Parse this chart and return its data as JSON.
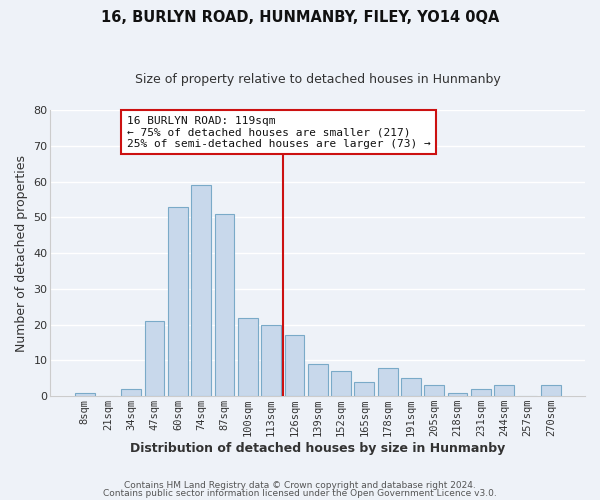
{
  "title": "16, BURLYN ROAD, HUNMANBY, FILEY, YO14 0QA",
  "subtitle": "Size of property relative to detached houses in Hunmanby",
  "xlabel": "Distribution of detached houses by size in Hunmanby",
  "ylabel": "Number of detached properties",
  "bar_labels": [
    "8sqm",
    "21sqm",
    "34sqm",
    "47sqm",
    "60sqm",
    "74sqm",
    "87sqm",
    "100sqm",
    "113sqm",
    "126sqm",
    "139sqm",
    "152sqm",
    "165sqm",
    "178sqm",
    "191sqm",
    "205sqm",
    "218sqm",
    "231sqm",
    "244sqm",
    "257sqm",
    "270sqm"
  ],
  "bar_heights": [
    1,
    0,
    2,
    21,
    53,
    59,
    51,
    22,
    20,
    17,
    9,
    7,
    4,
    8,
    5,
    3,
    1,
    2,
    3,
    0,
    3
  ],
  "bar_color": "#c8d8eb",
  "bar_edgecolor": "#7aaac8",
  "vline_x": 8.5,
  "vline_color": "#cc1111",
  "annotation_text": "16 BURLYN ROAD: 119sqm\n← 75% of detached houses are smaller (217)\n25% of semi-detached houses are larger (73) →",
  "annotation_box_facecolor": "#ffffff",
  "annotation_box_edgecolor": "#cc1111",
  "ylim": [
    0,
    80
  ],
  "yticks": [
    0,
    10,
    20,
    30,
    40,
    50,
    60,
    70,
    80
  ],
  "footer1": "Contains HM Land Registry data © Crown copyright and database right 2024.",
  "footer2": "Contains public sector information licensed under the Open Government Licence v3.0.",
  "fig_bg_color": "#eef2f8",
  "plot_bg_color": "#eef2f8",
  "grid_color": "#d0d8e8",
  "title_fontsize": 10.5,
  "subtitle_fontsize": 9,
  "axis_label_fontsize": 9,
  "tick_fontsize": 7.5,
  "footer_fontsize": 6.5
}
